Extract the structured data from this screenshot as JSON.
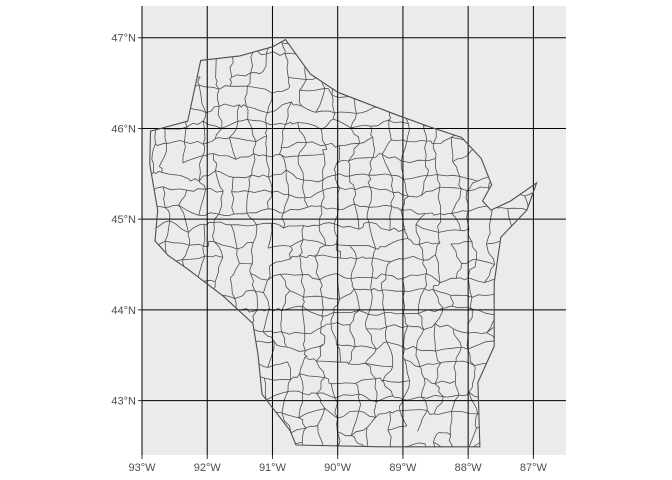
{
  "map": {
    "type": "choropleth-outline",
    "projection": "longlat",
    "panel_background": "#ebebeb",
    "gridline_color": "#000000",
    "polygon_fill": "#ebebeb",
    "polygon_border": "#4d4d4d",
    "x_ticks": [
      {
        "value": -93,
        "label": "93°W"
      },
      {
        "value": -92,
        "label": "92°W"
      },
      {
        "value": -91,
        "label": "91°W"
      },
      {
        "value": -90,
        "label": "90°W"
      },
      {
        "value": -89,
        "label": "89°W"
      },
      {
        "value": -88,
        "label": "88°W"
      },
      {
        "value": -87,
        "label": "87°W"
      }
    ],
    "y_ticks": [
      {
        "value": 47,
        "label": "47°N"
      },
      {
        "value": 46,
        "label": "46°N"
      },
      {
        "value": 45,
        "label": "45°N"
      },
      {
        "value": 44,
        "label": "44°N"
      },
      {
        "value": 43,
        "label": "43°N"
      }
    ],
    "xlim": [
      -93.0,
      -86.5
    ],
    "ylim": [
      42.4,
      47.35
    ],
    "region_outline": [
      [
        -92.88,
        45.6
      ],
      [
        -92.87,
        45.97
      ],
      [
        -92.3,
        46.08
      ],
      [
        -92.1,
        46.75
      ],
      [
        -91.5,
        46.8
      ],
      [
        -91.0,
        46.9
      ],
      [
        -90.8,
        46.98
      ],
      [
        -90.42,
        46.6
      ],
      [
        -90.0,
        46.4
      ],
      [
        -89.1,
        46.15
      ],
      [
        -88.6,
        46.02
      ],
      [
        -88.1,
        45.9
      ],
      [
        -87.8,
        45.67
      ],
      [
        -87.64,
        45.38
      ],
      [
        -87.78,
        45.2
      ],
      [
        -87.65,
        45.1
      ],
      [
        -87.35,
        45.2
      ],
      [
        -86.95,
        45.4
      ],
      [
        -87.1,
        45.1
      ],
      [
        -87.5,
        44.8
      ],
      [
        -87.6,
        44.3
      ],
      [
        -87.6,
        43.6
      ],
      [
        -87.85,
        43.2
      ],
      [
        -87.82,
        42.49
      ],
      [
        -89.3,
        42.49
      ],
      [
        -90.64,
        42.51
      ],
      [
        -90.73,
        42.67
      ],
      [
        -91.16,
        43.07
      ],
      [
        -91.22,
        43.5
      ],
      [
        -91.3,
        43.85
      ],
      [
        -91.75,
        44.15
      ],
      [
        -92.3,
        44.45
      ],
      [
        -92.6,
        44.6
      ],
      [
        -92.8,
        44.76
      ],
      [
        -92.76,
        45.1
      ],
      [
        -92.88,
        45.6
      ]
    ]
  }
}
